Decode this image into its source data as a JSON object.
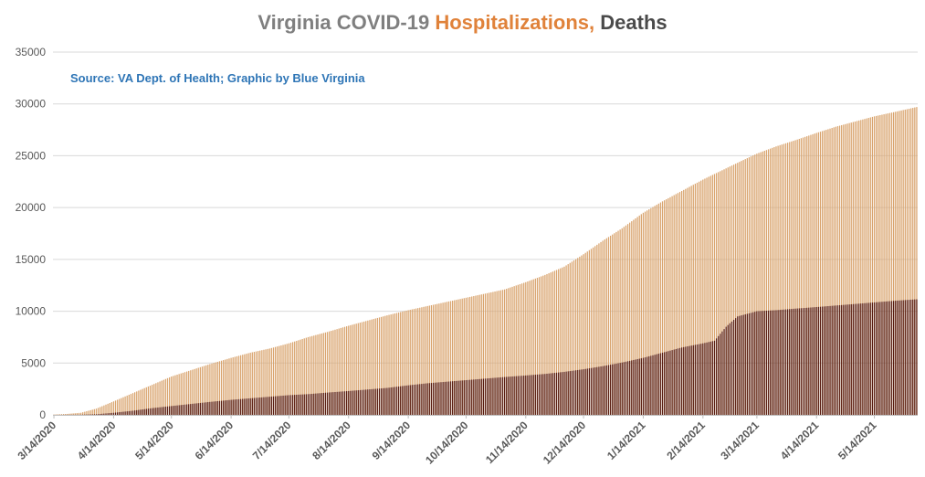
{
  "colors": {
    "background": "#ffffff",
    "title_gray": "#7f7f7f",
    "title_orange": "#e0823a",
    "title_dark": "#4a4a4a",
    "source_blue": "#2e75b6",
    "hospitalizations": "#d9a46e",
    "deaths": "#5a1e12",
    "gridline": "#d9d9d9",
    "axis": "#bfbfbf",
    "tick_text": "#595959"
  },
  "chart_data": {
    "type": "bar",
    "stacking": "overlapped",
    "title": {
      "part1": "Virginia COVID-19 ",
      "part2": "Hospitalizations,",
      "part3": " Deaths"
    },
    "subtitle": "Source: VA Dept. of Health; Graphic by Blue Virginia",
    "x_range": [
      "3/14/2020",
      "6/5/2021"
    ],
    "x_tick_labels": [
      "3/14/2020",
      "4/14/2020",
      "5/14/2020",
      "6/14/2020",
      "7/14/2020",
      "8/14/2020",
      "9/14/2020",
      "10/14/2020",
      "11/14/2020",
      "12/14/2020",
      "1/14/2021",
      "2/14/2021",
      "3/14/2021",
      "4/14/2021",
      "5/14/2021"
    ],
    "ylim": [
      0,
      35000
    ],
    "y_ticks": [
      0,
      5000,
      10000,
      15000,
      20000,
      25000,
      30000,
      35000
    ],
    "grid": true,
    "series": [
      {
        "key": "hospitalizations",
        "points": [
          [
            "3/14/2020",
            30
          ],
          [
            "3/20/2020",
            80
          ],
          [
            "3/28/2020",
            200
          ],
          [
            "4/5/2020",
            600
          ],
          [
            "4/14/2020",
            1300
          ],
          [
            "4/24/2020",
            2100
          ],
          [
            "5/4/2020",
            2900
          ],
          [
            "5/14/2020",
            3700
          ],
          [
            "5/24/2020",
            4300
          ],
          [
            "6/3/2020",
            4900
          ],
          [
            "6/14/2020",
            5500
          ],
          [
            "6/24/2020",
            6000
          ],
          [
            "7/4/2020",
            6400
          ],
          [
            "7/14/2020",
            6900
          ],
          [
            "7/24/2020",
            7500
          ],
          [
            "8/3/2020",
            8000
          ],
          [
            "8/14/2020",
            8600
          ],
          [
            "8/24/2020",
            9100
          ],
          [
            "9/3/2020",
            9600
          ],
          [
            "9/14/2020",
            10100
          ],
          [
            "9/24/2020",
            10500
          ],
          [
            "10/4/2020",
            10900
          ],
          [
            "10/14/2020",
            11300
          ],
          [
            "10/24/2020",
            11700
          ],
          [
            "11/3/2020",
            12100
          ],
          [
            "11/14/2020",
            12800
          ],
          [
            "11/24/2020",
            13500
          ],
          [
            "12/4/2020",
            14300
          ],
          [
            "12/14/2020",
            15500
          ],
          [
            "12/24/2020",
            16800
          ],
          [
            "1/3/2021",
            18000
          ],
          [
            "1/14/2021",
            19500
          ],
          [
            "1/24/2021",
            20600
          ],
          [
            "2/3/2021",
            21600
          ],
          [
            "2/14/2021",
            22700
          ],
          [
            "2/24/2021",
            23600
          ],
          [
            "3/6/2021",
            24500
          ],
          [
            "3/14/2021",
            25200
          ],
          [
            "3/24/2021",
            25900
          ],
          [
            "4/3/2021",
            26500
          ],
          [
            "4/14/2021",
            27200
          ],
          [
            "4/24/2021",
            27800
          ],
          [
            "5/4/2021",
            28300
          ],
          [
            "5/14/2021",
            28800
          ],
          [
            "5/24/2021",
            29200
          ],
          [
            "6/5/2021",
            29700
          ]
        ]
      },
      {
        "key": "deaths",
        "points": [
          [
            "3/14/2020",
            5
          ],
          [
            "3/28/2020",
            20
          ],
          [
            "4/5/2020",
            60
          ],
          [
            "4/14/2020",
            200
          ],
          [
            "4/24/2020",
            400
          ],
          [
            "5/4/2020",
            650
          ],
          [
            "5/14/2020",
            850
          ],
          [
            "5/24/2020",
            1050
          ],
          [
            "6/3/2020",
            1250
          ],
          [
            "6/14/2020",
            1450
          ],
          [
            "6/24/2020",
            1600
          ],
          [
            "7/4/2020",
            1750
          ],
          [
            "7/14/2020",
            1900
          ],
          [
            "7/24/2020",
            2000
          ],
          [
            "8/3/2020",
            2150
          ],
          [
            "8/14/2020",
            2300
          ],
          [
            "8/24/2020",
            2450
          ],
          [
            "9/3/2020",
            2600
          ],
          [
            "9/14/2020",
            2850
          ],
          [
            "9/24/2020",
            3050
          ],
          [
            "10/4/2020",
            3200
          ],
          [
            "10/14/2020",
            3350
          ],
          [
            "10/24/2020",
            3500
          ],
          [
            "11/3/2020",
            3650
          ],
          [
            "11/14/2020",
            3800
          ],
          [
            "11/24/2020",
            3950
          ],
          [
            "12/4/2020",
            4150
          ],
          [
            "12/14/2020",
            4400
          ],
          [
            "12/24/2020",
            4700
          ],
          [
            "1/3/2021",
            5050
          ],
          [
            "1/14/2021",
            5500
          ],
          [
            "1/24/2021",
            6000
          ],
          [
            "2/3/2021",
            6500
          ],
          [
            "2/14/2021",
            6900
          ],
          [
            "2/20/2021",
            7150
          ],
          [
            "2/26/2021",
            8500
          ],
          [
            "3/4/2021",
            9500
          ],
          [
            "3/14/2021",
            10000
          ],
          [
            "3/24/2021",
            10100
          ],
          [
            "4/3/2021",
            10250
          ],
          [
            "4/14/2021",
            10400
          ],
          [
            "4/24/2021",
            10550
          ],
          [
            "5/4/2021",
            10700
          ],
          [
            "5/14/2021",
            10850
          ],
          [
            "5/24/2021",
            11000
          ],
          [
            "6/5/2021",
            11150
          ]
        ]
      }
    ]
  }
}
